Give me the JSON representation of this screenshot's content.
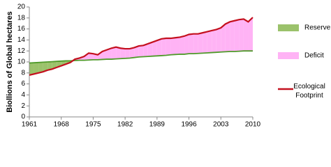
{
  "chart_data": {
    "type": "line",
    "y_label": "Biollions of Global hectares",
    "x": [
      1961,
      1962,
      1963,
      1964,
      1965,
      1966,
      1967,
      1968,
      1969,
      1970,
      1971,
      1972,
      1973,
      1974,
      1975,
      1976,
      1977,
      1978,
      1979,
      1980,
      1981,
      1982,
      1983,
      1984,
      1985,
      1986,
      1987,
      1988,
      1989,
      1990,
      1991,
      1992,
      1993,
      1994,
      1995,
      1996,
      1997,
      1998,
      1999,
      2000,
      2001,
      2002,
      2003,
      2004,
      2005,
      2006,
      2007,
      2008,
      2009,
      2010
    ],
    "series": [
      {
        "color": "#4f9a2a",
        "values": [
          9.8,
          9.85,
          9.9,
          9.95,
          10.0,
          10.05,
          10.1,
          10.15,
          10.2,
          10.2,
          10.25,
          10.3,
          10.3,
          10.35,
          10.4,
          10.4,
          10.45,
          10.5,
          10.5,
          10.55,
          10.6,
          10.65,
          10.7,
          10.8,
          10.9,
          10.95,
          11.0,
          11.05,
          11.1,
          11.15,
          11.2,
          11.3,
          11.35,
          11.4,
          11.4,
          11.5,
          11.5,
          11.55,
          11.6,
          11.65,
          11.7,
          11.75,
          11.8,
          11.85,
          11.9,
          11.9,
          11.95,
          12.0,
          12.0,
          12.0
        ]
      },
      {
        "name": "Ecological Footprint",
        "color": "#c4101e",
        "values": [
          7.6,
          7.8,
          8.0,
          8.2,
          8.5,
          8.7,
          9.0,
          9.3,
          9.6,
          9.9,
          10.5,
          10.7,
          11.0,
          11.6,
          11.5,
          11.3,
          11.9,
          12.2,
          12.5,
          12.7,
          12.5,
          12.4,
          12.4,
          12.6,
          12.9,
          13.0,
          13.3,
          13.6,
          13.9,
          14.2,
          14.3,
          14.3,
          14.4,
          14.5,
          14.7,
          15.0,
          15.1,
          15.1,
          15.3,
          15.5,
          15.7,
          15.9,
          16.2,
          16.9,
          17.3,
          17.5,
          17.7,
          17.8,
          17.3,
          18.1
        ]
      }
    ],
    "legend": [
      {
        "label": "Reserve",
        "color": "#9bc26b"
      },
      {
        "label": "Deficit",
        "color": "#ffb3f5"
      }
    ],
    "xlim": [
      1961,
      2010
    ],
    "xticks": [
      1961,
      1968,
      1975,
      1982,
      1989,
      1996,
      2003,
      2010
    ],
    "ylim": [
      0,
      20
    ],
    "yticks": [
      0,
      2,
      4,
      6,
      8,
      10,
      12,
      14,
      16,
      18,
      20
    ]
  }
}
